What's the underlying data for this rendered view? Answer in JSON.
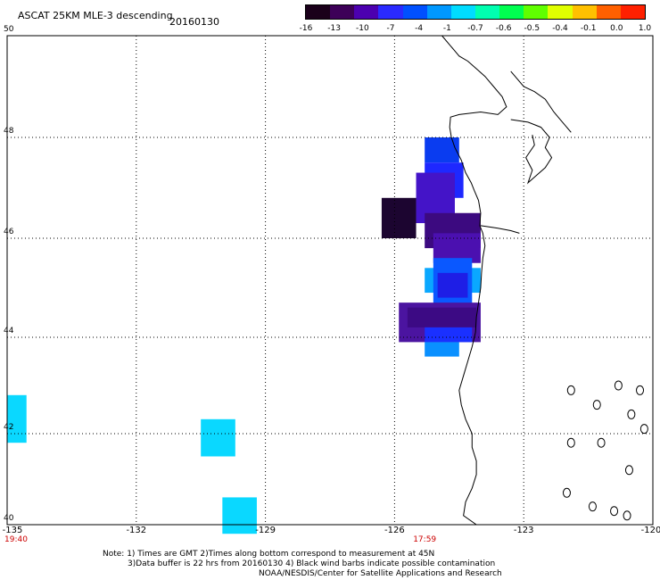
{
  "header": {
    "title": "ASCAT 25KM MLE-3 descending",
    "date": "20160130"
  },
  "colorbar": {
    "labels": [
      "-16",
      "-13",
      "-10",
      "-7",
      "-4",
      "-1",
      "-0.7",
      "-0.6",
      "-0.5",
      "-0.4",
      "-0.1",
      "0.0",
      "1.0"
    ],
    "colors": [
      "#1a001a",
      "#3d0058",
      "#4c00b0",
      "#2a2aff",
      "#0050ff",
      "#0098ff",
      "#00dcff",
      "#00ffb0",
      "#00ff50",
      "#60ff00",
      "#e0ff00",
      "#ffc000",
      "#ff6000",
      "#ff2000"
    ]
  },
  "map": {
    "lat_labels": [
      "50",
      "48",
      "46",
      "44",
      "42",
      "40"
    ],
    "lon_labels": [
      "-135",
      "-132",
      "-129",
      "-126",
      "-123",
      "-120"
    ],
    "time_labels": [
      {
        "text": "19:40",
        "lon": -135
      },
      {
        "text": "17:59",
        "lon": -125.3
      }
    ],
    "cells": [
      {
        "lon": [
          -125.3,
          -124.5
        ],
        "lat": [
          47.5,
          48.0
        ],
        "color": "#0a3cf0"
      },
      {
        "lon": [
          -125.3,
          -124.4
        ],
        "lat": [
          46.8,
          47.5
        ],
        "color": "#1e28ff"
      },
      {
        "lon": [
          -125.5,
          -124.6
        ],
        "lat": [
          46.3,
          47.3
        ],
        "color": "#4414c8"
      },
      {
        "lon": [
          -126.3,
          -125.5
        ],
        "lat": [
          46.0,
          46.8
        ],
        "color": "#1c0530"
      },
      {
        "lon": [
          -125.3,
          -124.0
        ],
        "lat": [
          45.8,
          46.5
        ],
        "color": "#3c0a80"
      },
      {
        "lon": [
          -125.1,
          -124.0
        ],
        "lat": [
          45.5,
          46.1
        ],
        "color": "#4b10b0"
      },
      {
        "lon": [
          -125.3,
          -124.0
        ],
        "lat": [
          44.9,
          45.4
        ],
        "color": "#0aa8ff"
      },
      {
        "lon": [
          -125.1,
          -124.2
        ],
        "lat": [
          44.6,
          45.6
        ],
        "color": "#0a58ff"
      },
      {
        "lon": [
          -125.0,
          -124.3
        ],
        "lat": [
          44.8,
          45.3
        ],
        "color": "#1e1ee6"
      },
      {
        "lon": [
          -125.9,
          -124.0
        ],
        "lat": [
          43.9,
          44.7
        ],
        "color": "#4b14a0"
      },
      {
        "lon": [
          -125.7,
          -124.1
        ],
        "lat": [
          44.2,
          44.6
        ],
        "color": "#3c0a84"
      },
      {
        "lon": [
          -125.3,
          -124.2
        ],
        "lat": [
          43.9,
          44.2
        ],
        "color": "#1a30ff"
      },
      {
        "lon": [
          -125.3,
          -124.5
        ],
        "lat": [
          43.6,
          43.9
        ],
        "color": "#0a90ff"
      },
      {
        "lon": [
          -135.0,
          -134.55
        ],
        "lat": [
          41.8,
          42.8
        ],
        "color": "#0ad8ff"
      },
      {
        "lon": [
          -130.5,
          -129.7
        ],
        "lat": [
          41.5,
          42.3
        ],
        "color": "#0ad8ff"
      },
      {
        "lon": [
          -130.0,
          -129.2
        ],
        "lat": [
          39.8,
          40.6
        ],
        "color": "#0ad8ff"
      }
    ]
  },
  "notes": {
    "line1": "Note: 1) Times are GMT 2)Times along bottom correspond to measurement at 45N",
    "line2": "3)Data buffer is 22 hrs from 20160130 4) Black wind barbs indicate possible contamination",
    "line3": "NOAA/NESDIS/Center for Satellite Applications and Research"
  }
}
